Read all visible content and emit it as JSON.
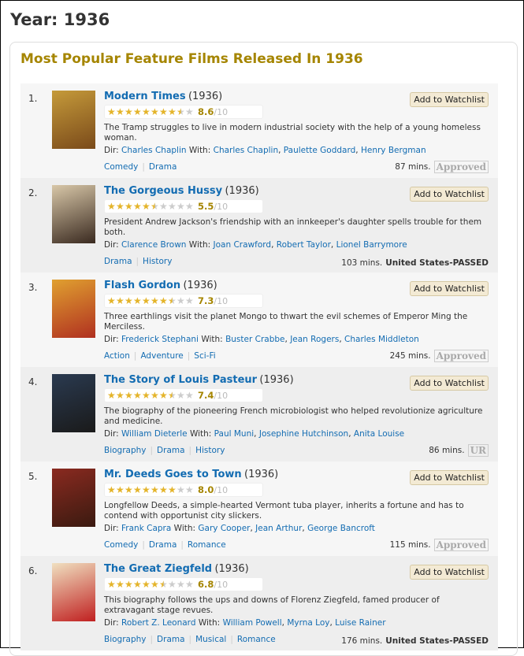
{
  "page_title": "Year: 1936",
  "section_title": "Most Popular Feature Films Released In 1936",
  "watchlist_label": "Add to Watchlist",
  "dir_label": "Dir:",
  "with_label": "With:",
  "out_of": "/10",
  "colors": {
    "title_link": "#136cb2",
    "heading": "#a58500",
    "star": "#e4b42a"
  },
  "films": [
    {
      "rank": "1.",
      "title": "Modern Times",
      "year": "(1936)",
      "rating": 8.6,
      "rating_text": "8.6",
      "desc": "The Tramp struggles to live in modern industrial society with the help of a young homeless woman.",
      "director": "Charles Chaplin",
      "cast": [
        "Charles Chaplin",
        "Paulette Goddard",
        "Henry Bergman"
      ],
      "genres": [
        "Comedy",
        "Drama"
      ],
      "runtime": "87 mins.",
      "certificate": "Approved",
      "cert_style": "image",
      "poster_colors": [
        "#c59a3a",
        "#7a4a1a"
      ]
    },
    {
      "rank": "2.",
      "title": "The Gorgeous Hussy",
      "year": "(1936)",
      "rating": 5.5,
      "rating_text": "5.5",
      "desc": "President Andrew Jackson's friendship with an innkeeper's daughter spells trouble for them both.",
      "director": "Clarence Brown",
      "cast": [
        "Joan Crawford",
        "Robert Taylor",
        "Lionel Barrymore"
      ],
      "genres": [
        "Drama",
        "History"
      ],
      "runtime": "103 mins.",
      "certificate": "United States-PASSED",
      "cert_style": "text",
      "poster_colors": [
        "#d8c7a8",
        "#3a2a20"
      ]
    },
    {
      "rank": "3.",
      "title": "Flash Gordon",
      "year": "(1936)",
      "rating": 7.3,
      "rating_text": "7.3",
      "desc": "Three earthlings visit the planet Mongo to thwart the evil schemes of Emperor Ming the Merciless.",
      "director": "Frederick Stephani",
      "cast": [
        "Buster Crabbe",
        "Jean Rogers",
        "Charles Middleton"
      ],
      "genres": [
        "Action",
        "Adventure",
        "Sci-Fi"
      ],
      "runtime": "245 mins.",
      "certificate": "Approved",
      "cert_style": "image",
      "poster_colors": [
        "#e0a030",
        "#b03020"
      ]
    },
    {
      "rank": "4.",
      "title": "The Story of Louis Pasteur",
      "year": "(1936)",
      "rating": 7.4,
      "rating_text": "7.4",
      "desc": "The biography of the pioneering French microbiologist who helped revolutionize agriculture and medicine.",
      "director": "William Dieterle",
      "cast": [
        "Paul Muni",
        "Josephine Hutchinson",
        "Anita Louise"
      ],
      "genres": [
        "Biography",
        "Drama",
        "History"
      ],
      "runtime": "86 mins.",
      "certificate": "UR",
      "cert_style": "image",
      "poster_colors": [
        "#2a3a50",
        "#1a1a1a"
      ]
    },
    {
      "rank": "5.",
      "title": "Mr. Deeds Goes to Town",
      "year": "(1936)",
      "rating": 8.0,
      "rating_text": "8.0",
      "desc": "Longfellow Deeds, a simple-hearted Vermont tuba player, inherits a fortune and has to contend with opportunist city slickers.",
      "director": "Frank Capra",
      "cast": [
        "Gary Cooper",
        "Jean Arthur",
        "George Bancroft"
      ],
      "genres": [
        "Comedy",
        "Drama",
        "Romance"
      ],
      "runtime": "115 mins.",
      "certificate": "Approved",
      "cert_style": "image",
      "poster_colors": [
        "#8a2a20",
        "#3a1a10"
      ]
    },
    {
      "rank": "6.",
      "title": "The Great Ziegfeld",
      "year": "(1936)",
      "rating": 6.8,
      "rating_text": "6.8",
      "desc": "This biography follows the ups and downs of Florenz Ziegfeld, famed producer of extravagant stage revues.",
      "director": "Robert Z. Leonard",
      "cast": [
        "William Powell",
        "Myrna Loy",
        "Luise Rainer"
      ],
      "genres": [
        "Biography",
        "Drama",
        "Musical",
        "Romance"
      ],
      "runtime": "176 mins.",
      "certificate": "United States-PASSED",
      "cert_style": "text",
      "poster_colors": [
        "#f0e0c0",
        "#c02020"
      ]
    }
  ]
}
